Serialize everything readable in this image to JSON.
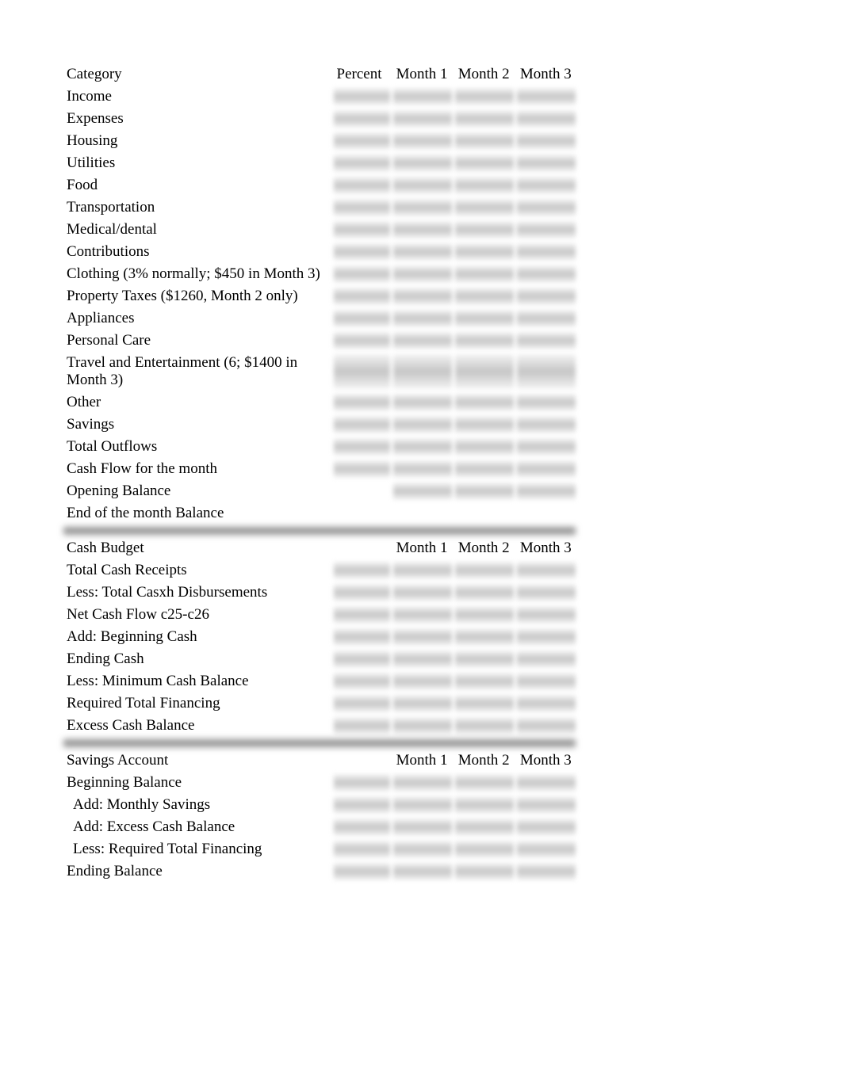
{
  "header": {
    "col1": "Category",
    "col2": "Percent",
    "col3": "Month 1",
    "col4": "Month 2",
    "col5": "Month 3"
  },
  "section1": {
    "rows": [
      "Income",
      "Expenses",
      "Housing",
      "Utilities",
      "Food",
      "Transportation",
      "Medical/dental",
      "Contributions",
      "Clothing (3% normally; $450 in Month 3)",
      "Property Taxes ($1260, Month 2 only)",
      "Appliances",
      "Personal Care",
      "Travel and Entertainment (6; $1400 in Month 3)",
      "Other",
      "Savings",
      "Total Outflows",
      "Cash Flow for the month",
      "Opening Balance",
      "End of the month Balance"
    ]
  },
  "section2": {
    "header": {
      "col1": "Cash Budget",
      "col3": "Month 1",
      "col4": "Month 2",
      "col5": "Month 3"
    },
    "rows": [
      "Total Cash Receipts",
      "Less: Total Casxh Disbursements",
      "Net Cash Flow c25-c26",
      "Add: Beginning Cash",
      "Ending Cash",
      "Less: Minimum Cash Balance",
      "Required Total Financing",
      "Excess Cash Balance"
    ]
  },
  "section3": {
    "header": {
      "col1": "Savings Account",
      "col3": "Month 1",
      "col4": "Month 2",
      "col5": "Month 3"
    },
    "rows": [
      {
        "label": "Beginning Balance",
        "indent": false
      },
      {
        "label": "Add: Monthly Savings",
        "indent": true
      },
      {
        "label": "Add: Excess Cash Balance",
        "indent": true
      },
      {
        "label": "Less: Required Total Financing",
        "indent": true
      },
      {
        "label": "Ending Balance",
        "indent": false
      }
    ]
  },
  "styling": {
    "font_family": "Times New Roman",
    "font_size": 19,
    "text_color": "#000000",
    "background": "#ffffff",
    "blur_row_color": "rgba(140,140,140,0.5)",
    "divider_color": "rgba(80,80,80,0.7)",
    "column_widths": {
      "category": 340,
      "percent": 75,
      "month": 78
    }
  }
}
